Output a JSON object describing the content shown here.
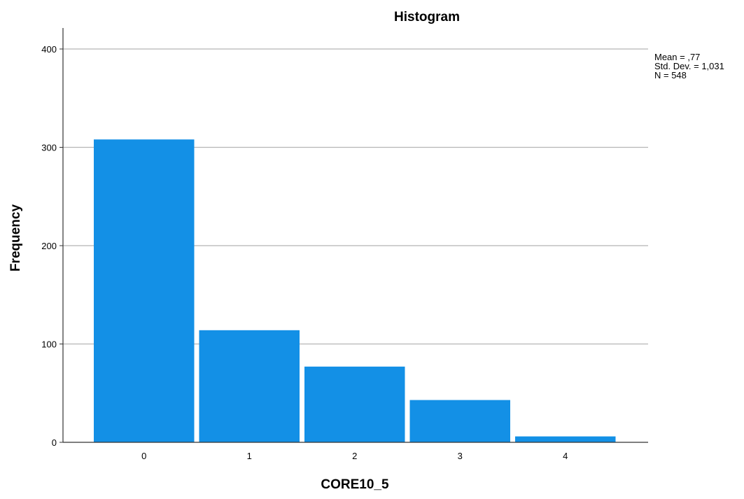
{
  "chart_data": {
    "type": "bar",
    "title": "Histogram",
    "xlabel": "CORE10_5",
    "ylabel": "Frequency",
    "categories": [
      "0",
      "1",
      "2",
      "3",
      "4"
    ],
    "values": [
      308,
      114,
      77,
      43,
      6
    ],
    "ylim": [
      0,
      420
    ],
    "yticks": [
      "0",
      "100",
      "200",
      "300",
      "400"
    ],
    "grid": true,
    "bar_color": "#1390e6",
    "stats": {
      "mean": "Mean = ,77",
      "std_dev": "Std. Dev. = 1,031",
      "n": "N = 548"
    }
  }
}
